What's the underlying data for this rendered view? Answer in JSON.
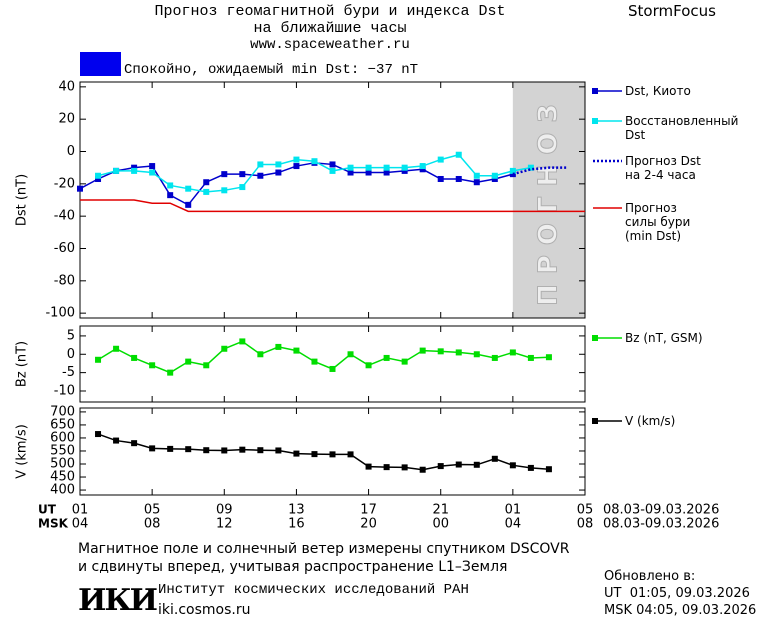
{
  "header": {
    "title": "Прогноз геомагнитной бури и индекса Dst\nна ближайшие часы",
    "url": "www.spaceweather.ru",
    "brand": "StormFocus"
  },
  "status": {
    "text": "Спокойно, ожидаемый min Dst: −37 nT",
    "color": "#0000ee"
  },
  "chart_data": [
    {
      "type": "line",
      "ylabel": "Dst (nT)",
      "xlim": [
        0,
        28
      ],
      "ylim": [
        -103,
        43
      ],
      "yticks": [
        40,
        20,
        0,
        -20,
        -40,
        -60,
        -80,
        -100
      ],
      "forecast_band": {
        "x": [
          24,
          28
        ],
        "label": "ПРОГНОЗ",
        "color": "#d3d3d3"
      },
      "series": [
        {
          "name": "Dst, Киото",
          "color": "#0000cc",
          "line_style": "solid",
          "marker": true,
          "x": [
            0,
            1,
            2,
            3,
            4,
            5,
            6,
            7,
            8,
            9,
            10,
            11,
            12,
            13,
            14,
            15,
            16,
            17,
            18,
            19,
            20,
            21,
            22,
            23,
            24
          ],
          "values": [
            -23,
            -17,
            -12,
            -10,
            -9,
            -27,
            -33,
            -19,
            -14,
            -14,
            -15,
            -13,
            -9,
            -7,
            -8,
            -13,
            -13,
            -13,
            -12,
            -11,
            -17,
            -17,
            -19,
            -17,
            -14
          ]
        },
        {
          "name": "Восстановленный\nDst",
          "color": "#00e5ee",
          "line_style": "solid",
          "marker": true,
          "x": [
            1,
            2,
            3,
            4,
            5,
            6,
            7,
            8,
            9,
            10,
            11,
            12,
            13,
            14,
            15,
            16,
            17,
            18,
            19,
            20,
            21,
            22,
            23,
            24,
            25
          ],
          "values": [
            -15,
            -12,
            -12,
            -13,
            -21,
            -23,
            -25,
            -24,
            -22,
            -8,
            -8,
            -5,
            -6,
            -12,
            -10,
            -10,
            -10,
            -10,
            -9,
            -5,
            -2,
            -15,
            -15,
            -12,
            -10
          ]
        },
        {
          "name": "Прогноз Dst\nна 2-4 часа",
          "color": "#0000cc",
          "line_style": "dotted",
          "marker": false,
          "x": [
            24,
            25,
            26,
            27
          ],
          "values": [
            -14,
            -11,
            -10,
            -10
          ]
        },
        {
          "name": "Прогноз\nсилы бури\n(min Dst)",
          "color": "#e00000",
          "line_style": "solid",
          "marker": false,
          "x": [
            0,
            3,
            4,
            5,
            6,
            28
          ],
          "values": [
            -30,
            -30,
            -32,
            -32,
            -37,
            -37
          ]
        }
      ]
    },
    {
      "type": "line",
      "ylabel": "Bz (nT)",
      "xlim": [
        0,
        28
      ],
      "ylim": [
        -13,
        7.7
      ],
      "yticks": [
        5,
        0,
        -5,
        -10
      ],
      "series": [
        {
          "name": "Bz (nT, GSM)",
          "color": "#00dd00",
          "line_style": "solid",
          "marker": true,
          "x": [
            1,
            2,
            3,
            4,
            5,
            6,
            7,
            8,
            9,
            10,
            11,
            12,
            13,
            14,
            15,
            16,
            17,
            18,
            19,
            20,
            21,
            22,
            23,
            24,
            25,
            26
          ],
          "values": [
            -1.5,
            1.5,
            -1,
            -3,
            -5,
            -2,
            -3,
            1.5,
            3.5,
            0,
            2,
            1,
            -2,
            -4,
            0,
            -3,
            -1,
            -2,
            1,
            0.8,
            0.5,
            0,
            -1,
            0.5,
            -1,
            -0.8
          ]
        }
      ]
    },
    {
      "type": "line",
      "ylabel": "V (km/s)",
      "xlim": [
        0,
        28
      ],
      "ylim": [
        381,
        715
      ],
      "yticks": [
        700,
        650,
        600,
        550,
        500,
        450,
        400
      ],
      "xticks": [
        {
          "value": 0,
          "label": "01"
        },
        {
          "value": 4,
          "label": "05"
        },
        {
          "value": 8,
          "label": "09"
        },
        {
          "value": 12,
          "label": "13"
        },
        {
          "value": 16,
          "label": "17"
        },
        {
          "value": 20,
          "label": "21"
        },
        {
          "value": 24,
          "label": "01"
        },
        {
          "value": 28,
          "label": "05"
        }
      ],
      "xticks_msk": [
        {
          "value": 0,
          "label": "04"
        },
        {
          "value": 4,
          "label": "08"
        },
        {
          "value": 8,
          "label": "12"
        },
        {
          "value": 12,
          "label": "16"
        },
        {
          "value": 16,
          "label": "20"
        },
        {
          "value": 20,
          "label": "00"
        },
        {
          "value": 24,
          "label": "04"
        },
        {
          "value": 28,
          "label": "08"
        }
      ],
      "x_row_labels": [
        "UT",
        "MSK"
      ],
      "x_date_ranges": [
        "08.03-09.03.2026",
        "08.03-09.03.2026"
      ],
      "series": [
        {
          "name": "V (km/s)",
          "color": "#000000",
          "line_style": "solid",
          "marker": true,
          "x": [
            1,
            2,
            3,
            4,
            5,
            6,
            7,
            8,
            9,
            10,
            11,
            12,
            13,
            14,
            15,
            16,
            17,
            18,
            19,
            20,
            21,
            22,
            23,
            24,
            25,
            26
          ],
          "values": [
            615,
            590,
            580,
            560,
            558,
            557,
            553,
            552,
            555,
            553,
            552,
            540,
            538,
            537,
            537,
            490,
            488,
            487,
            478,
            492,
            498,
            497,
            520,
            495,
            485,
            480
          ]
        }
      ]
    }
  ],
  "footer": {
    "note": "Магнитное поле и солнечный ветер измерены спутником DSCOVR\nи сдвинуты вперед, учитывая распространение L1–Земля",
    "logo": "ИКИ",
    "institute": "Институт космических исследований РАН",
    "site": "iki.cosmos.ru",
    "updated_label": "Обновлено в:",
    "updated_ut": "UT  01:05, 09.03.2026",
    "updated_msk": "MSK 04:05, 09.03.2026"
  }
}
